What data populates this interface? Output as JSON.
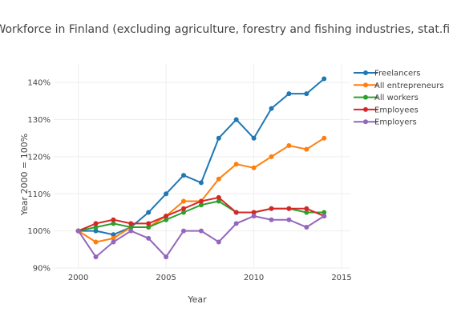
{
  "chart_data": {
    "type": "line",
    "title": "Workforce in Finland (excluding agriculture, forestry and fishing industries, stat.fi)",
    "xlabel": "Year",
    "ylabel": "Year 2000 = 100%",
    "xlim": [
      1998.6,
      2015.5
    ],
    "ylim": [
      90,
      145
    ],
    "xticks": [
      2000,
      2005,
      2010,
      2015
    ],
    "yticks": [
      90,
      100,
      110,
      120,
      130,
      140
    ],
    "ytick_labels": [
      "90%",
      "100%",
      "110%",
      "120%",
      "130%",
      "140%"
    ],
    "grid": true,
    "legend_position": "top-right",
    "x": [
      2000,
      2001,
      2002,
      2003,
      2004,
      2005,
      2006,
      2007,
      2008,
      2009,
      2010,
      2011,
      2012,
      2013,
      2014
    ],
    "series": [
      {
        "name": "Freelancers",
        "color": "#1f77b4",
        "values": [
          100,
          100,
          99,
          101,
          105,
          110,
          115,
          113,
          125,
          130,
          125,
          133,
          137,
          137,
          141
        ]
      },
      {
        "name": "All entrepreneurs",
        "color": "#ff7f0e",
        "values": [
          100,
          97,
          98,
          101,
          101,
          104,
          108,
          108,
          114,
          118,
          117,
          120,
          123,
          122,
          125
        ]
      },
      {
        "name": "All workers",
        "color": "#2ca02c",
        "values": [
          100,
          101,
          102,
          101,
          101,
          103,
          105,
          107,
          108,
          105,
          105,
          106,
          106,
          105,
          105
        ]
      },
      {
        "name": "Employees",
        "color": "#d62728",
        "values": [
          100,
          102,
          103,
          102,
          102,
          104,
          106,
          108,
          109,
          105,
          105,
          106,
          106,
          106,
          104
        ]
      },
      {
        "name": "Employers",
        "color": "#9467bd",
        "values": [
          100,
          93,
          97,
          100,
          98,
          93,
          100,
          100,
          97,
          102,
          104,
          103,
          103,
          101,
          104
        ]
      }
    ]
  }
}
